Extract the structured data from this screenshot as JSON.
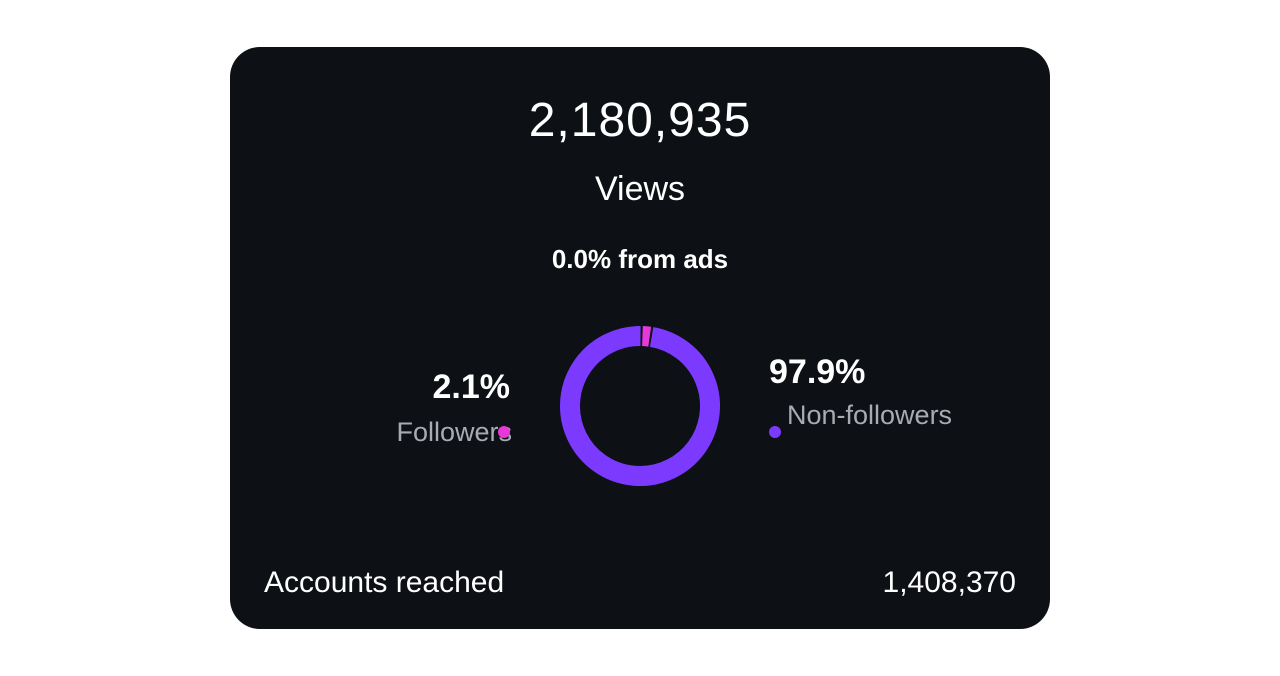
{
  "views": {
    "count": "2,180,935",
    "label": "Views",
    "ads_text": "0.0% from ads"
  },
  "breakdown": {
    "followers": {
      "percent_text": "2.1%",
      "label": "Followers",
      "color": "#e838d9"
    },
    "non_followers": {
      "percent_text": "97.9%",
      "label": "Non-followers",
      "color": "#7c3aff"
    }
  },
  "accounts_reached": {
    "label": "Accounts reached",
    "value": "1,408,370"
  },
  "chart_data": {
    "type": "pie",
    "categories": [
      "Followers",
      "Non-followers"
    ],
    "values": [
      2.1,
      97.9
    ],
    "colors": [
      "#e838d9",
      "#7c3aff"
    ],
    "title": "",
    "xlabel": "",
    "ylabel": ""
  }
}
